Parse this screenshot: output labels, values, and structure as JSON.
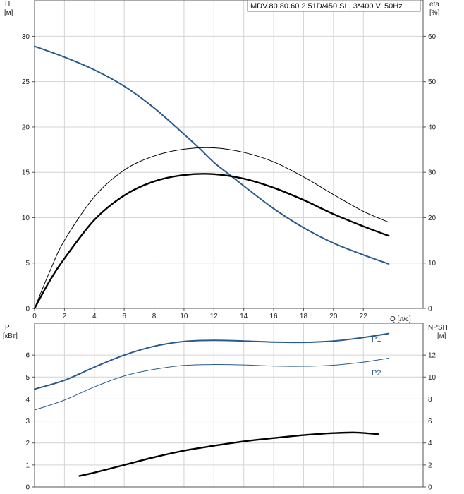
{
  "chart_data": [
    {
      "type": "line",
      "title": "MDV.80.80.60.2.51D/450.SL, 3*400 V, 50Hz",
      "xlabel": "Q [л/с]",
      "ylabel_left": "H",
      "ylabel_left_unit": "[м]",
      "ylabel_right": "eta",
      "ylabel_right_unit": "[%]",
      "xlim": [
        0,
        26
      ],
      "xticks": [
        0,
        2,
        4,
        6,
        8,
        10,
        12,
        14,
        16,
        18,
        20,
        22
      ],
      "ylim_left": [
        0,
        34
      ],
      "yticks_left": [
        0,
        5,
        10,
        15,
        20,
        25,
        30
      ],
      "ylim_right": [
        0,
        68
      ],
      "yticks_right": [
        0,
        10,
        20,
        30,
        40,
        50,
        60
      ],
      "grid": true,
      "series": [
        {
          "axis": "left",
          "color": "#2a5a8a",
          "width": 2,
          "x": [
            0,
            2,
            4,
            6,
            8,
            10,
            11,
            12,
            13,
            14,
            16,
            18,
            20,
            22,
            23.7
          ],
          "y": [
            28.9,
            27.7,
            26.3,
            24.5,
            22.1,
            19.2,
            17.7,
            16.1,
            14.8,
            13.5,
            11.0,
            8.9,
            7.2,
            5.9,
            4.9
          ]
        },
        {
          "axis": "right",
          "color": "#000000",
          "width": 1,
          "x": [
            0,
            1,
            2,
            4,
            6,
            8,
            10,
            12,
            14,
            16,
            18,
            20,
            22,
            23.7
          ],
          "y": [
            0,
            8,
            15,
            24.6,
            30.5,
            33.6,
            35.1,
            35.4,
            34.4,
            32.3,
            29.0,
            25.1,
            21.4,
            19.0
          ]
        },
        {
          "axis": "right",
          "color": "#000000",
          "width": 2.4,
          "x": [
            0,
            1,
            2,
            4,
            6,
            8,
            10,
            12,
            14,
            16,
            18,
            20,
            22,
            23.7
          ],
          "y": [
            0,
            6,
            11,
            19.5,
            24.9,
            28.0,
            29.4,
            29.6,
            28.6,
            26.6,
            23.9,
            20.8,
            18.1,
            16.0
          ]
        }
      ]
    },
    {
      "type": "line",
      "xlabel": "",
      "ylabel_left": "P",
      "ylabel_left_unit": "[кВт]",
      "ylabel_right": "NPSH",
      "ylabel_right_unit": "[м]",
      "xlim": [
        0,
        26
      ],
      "ylim_left": [
        0,
        7.45
      ],
      "yticks_left": [
        0,
        1,
        2,
        3,
        4,
        5,
        6
      ],
      "ylim_right": [
        0,
        14.9
      ],
      "yticks_right": [
        0,
        2,
        4,
        6,
        8,
        10,
        12
      ],
      "grid": true,
      "series": [
        {
          "name": "P1",
          "axis": "left",
          "color": "#2a5a8a",
          "width": 2,
          "x": [
            0,
            2,
            4,
            6,
            8,
            10,
            12,
            14,
            16,
            18,
            20,
            22,
            23.7
          ],
          "y": [
            4.45,
            4.85,
            5.45,
            6.0,
            6.4,
            6.62,
            6.67,
            6.64,
            6.59,
            6.58,
            6.64,
            6.8,
            6.98
          ]
        },
        {
          "name": "P2",
          "axis": "left",
          "color": "#2a5a8a",
          "width": 1,
          "x": [
            0,
            2,
            4,
            6,
            8,
            10,
            12,
            14,
            16,
            18,
            20,
            22,
            23.7
          ],
          "y": [
            3.5,
            3.95,
            4.55,
            5.05,
            5.35,
            5.53,
            5.57,
            5.55,
            5.5,
            5.49,
            5.54,
            5.68,
            5.86
          ]
        },
        {
          "axis": "right",
          "color": "#000000",
          "width": 2.4,
          "x": [
            3,
            4,
            6,
            8,
            10,
            12,
            14,
            16,
            18,
            20,
            21.5,
            23
          ],
          "y": [
            1.0,
            1.3,
            2.0,
            2.7,
            3.3,
            3.75,
            4.15,
            4.45,
            4.72,
            4.9,
            4.95,
            4.8
          ]
        }
      ]
    }
  ]
}
